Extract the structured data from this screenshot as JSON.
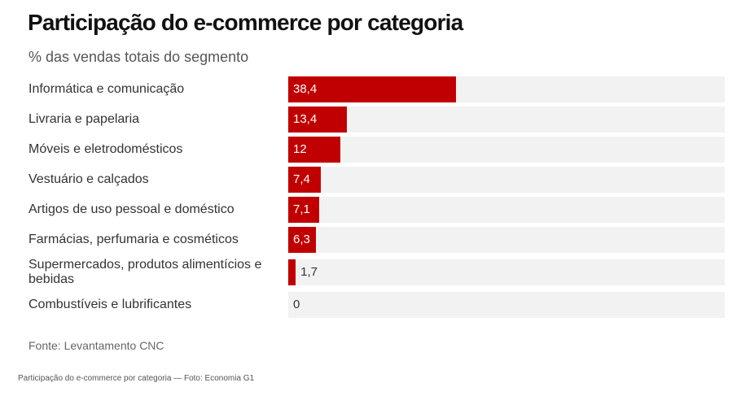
{
  "header": {
    "title": "Participação do e-commerce por categoria",
    "subtitle": "% das vendas totais do segmento"
  },
  "chart_data": {
    "type": "bar",
    "orientation": "horizontal",
    "title": "Participação do e-commerce por categoria",
    "subtitle": "% das vendas totais do segmento",
    "categories": [
      "Informática e comunicação",
      "Livraria e papelaria",
      "Móveis e eletrodomésticos",
      "Vestuário e calçados",
      "Artigos de uso pessoal e doméstico",
      "Farmácias, perfumaria e cosméticos",
      "Supermercados, produtos alimentícios e bebidas",
      "Combustíveis e lubrificantes"
    ],
    "values": [
      38.4,
      13.4,
      12,
      7.4,
      7.1,
      6.3,
      1.7,
      0
    ],
    "value_labels": [
      "38,4",
      "13,4",
      "12",
      "7,4",
      "7,1",
      "6,3",
      "1,7",
      "0"
    ],
    "xlim": [
      0,
      100
    ],
    "bar_color": "#c00000",
    "track_color": "#f2f2f2",
    "grid": false,
    "legend": "none"
  },
  "footer": {
    "source": "Fonte: Levantamento CNC",
    "caption": "Participação do e-commerce por categoria — Foto: Economia G1"
  }
}
